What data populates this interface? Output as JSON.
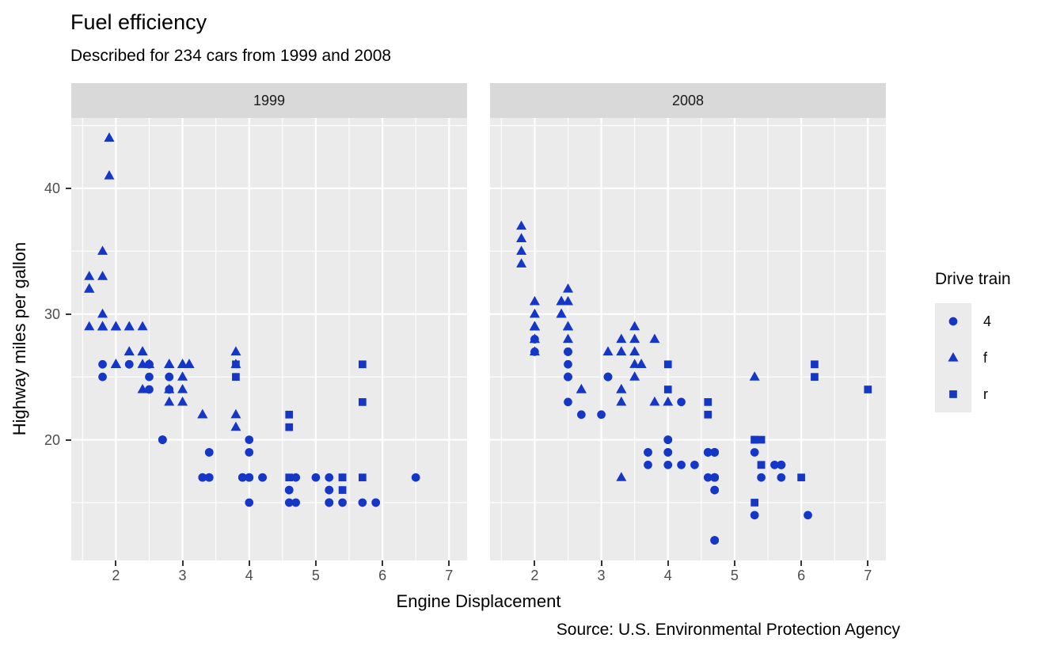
{
  "title": "Fuel efficiency",
  "subtitle": "Described for 234 cars from 1999 and 2008",
  "caption": "Source: U.S. Environmental Protection Agency",
  "axes": {
    "x_title": "Engine Displacement",
    "y_title": "Highway miles per gallon"
  },
  "legend": {
    "title": "Drive train",
    "entries": [
      {
        "label": "4",
        "shape": "circle"
      },
      {
        "label": "f",
        "shape": "triangle"
      },
      {
        "label": "r",
        "shape": "square"
      }
    ]
  },
  "colors": {
    "point": "#1437C8",
    "panel_bg": "#EBEBEB",
    "strip_bg": "#D9D9D9",
    "grid": "#FFFFFF",
    "tick_text": "#4D4D4D",
    "tick_mark": "#333333",
    "strip_text": "#1A1A1A",
    "text": "#000000"
  },
  "chart_data": {
    "type": "scatter",
    "title": "Fuel efficiency",
    "subtitle": "Described for 234 cars from 1999 and 2008",
    "xlabel": "Engine Displacement",
    "ylabel": "Highway miles per gallon",
    "legend_title": "Drive train",
    "legend_position": "right",
    "grid": true,
    "shape_by_drive_train": {
      "4": "circle",
      "f": "triangle",
      "r": "square"
    },
    "x_domain": [
      1.33,
      7.27
    ],
    "y_domain": [
      10.4,
      45.6
    ],
    "x_ticks": [
      2,
      3,
      4,
      5,
      6,
      7
    ],
    "x_minor_ticks": [
      1.5,
      2.5,
      3.5,
      4.5,
      5.5,
      6.5
    ],
    "y_ticks": [
      20,
      30,
      40
    ],
    "y_minor_ticks": [
      15,
      25,
      35,
      45
    ],
    "facets": [
      {
        "label": "1999",
        "points": [
          [
            5.7,
            17,
            "r"
          ],
          [
            5.7,
            26,
            "r"
          ],
          [
            5.7,
            23,
            "r"
          ],
          [
            4.6,
            17,
            "r"
          ],
          [
            5.4,
            17,
            "r"
          ],
          [
            3.8,
            26,
            "r"
          ],
          [
            3.8,
            25,
            "r"
          ],
          [
            4.6,
            21,
            "r"
          ],
          [
            4.6,
            22,
            "r"
          ],
          [
            5.4,
            17,
            "r"
          ],
          [
            5.4,
            16,
            "r"
          ],
          [
            1.8,
            26,
            "4"
          ],
          [
            1.8,
            25,
            "4"
          ],
          [
            2.8,
            25,
            "4"
          ],
          [
            2.8,
            25,
            "4"
          ],
          [
            2.8,
            24,
            "4"
          ],
          [
            5.7,
            15,
            "4"
          ],
          [
            6.5,
            17,
            "4"
          ],
          [
            3.9,
            17,
            "4"
          ],
          [
            3.9,
            17,
            "4"
          ],
          [
            5.2,
            17,
            "4"
          ],
          [
            5.2,
            15,
            "4"
          ],
          [
            3.9,
            17,
            "4"
          ],
          [
            5.2,
            16,
            "4"
          ],
          [
            5.9,
            15,
            "4"
          ],
          [
            5.2,
            15,
            "4"
          ],
          [
            5.2,
            16,
            "4"
          ],
          [
            5.9,
            15,
            "4"
          ],
          [
            5.2,
            15,
            "4"
          ],
          [
            4.0,
            17,
            "4"
          ],
          [
            4.0,
            19,
            "4"
          ],
          [
            4.0,
            17,
            "4"
          ],
          [
            4.2,
            17,
            "4"
          ],
          [
            4.2,
            17,
            "4"
          ],
          [
            4.6,
            16,
            "4"
          ],
          [
            4.6,
            16,
            "4"
          ],
          [
            5.4,
            15,
            "4"
          ],
          [
            4.0,
            20,
            "4"
          ],
          [
            4.7,
            17,
            "4"
          ],
          [
            4.0,
            15,
            "4"
          ],
          [
            4.6,
            15,
            "4"
          ],
          [
            4.0,
            17,
            "4"
          ],
          [
            5.0,
            17,
            "4"
          ],
          [
            3.3,
            17,
            "4"
          ],
          [
            3.3,
            17,
            "4"
          ],
          [
            2.5,
            25,
            "4"
          ],
          [
            2.5,
            24,
            "4"
          ],
          [
            2.2,
            26,
            "4"
          ],
          [
            2.2,
            26,
            "4"
          ],
          [
            2.5,
            26,
            "4"
          ],
          [
            2.5,
            26,
            "4"
          ],
          [
            2.7,
            20,
            "4"
          ],
          [
            2.7,
            20,
            "4"
          ],
          [
            3.4,
            19,
            "4"
          ],
          [
            3.4,
            17,
            "4"
          ],
          [
            4.7,
            15,
            "4"
          ],
          [
            2.7,
            20,
            "4"
          ],
          [
            2.7,
            20,
            "4"
          ],
          [
            3.4,
            17,
            "4"
          ],
          [
            3.4,
            19,
            "4"
          ],
          [
            1.8,
            29,
            "f"
          ],
          [
            1.8,
            29,
            "f"
          ],
          [
            2.8,
            26,
            "f"
          ],
          [
            2.8,
            26,
            "f"
          ],
          [
            2.4,
            27,
            "f"
          ],
          [
            3.1,
            26,
            "f"
          ],
          [
            2.4,
            24,
            "f"
          ],
          [
            3.0,
            24,
            "f"
          ],
          [
            3.3,
            22,
            "f"
          ],
          [
            3.3,
            22,
            "f"
          ],
          [
            3.8,
            22,
            "f"
          ],
          [
            3.8,
            21,
            "f"
          ],
          [
            1.6,
            33,
            "f"
          ],
          [
            1.6,
            32,
            "f"
          ],
          [
            1.6,
            32,
            "f"
          ],
          [
            1.6,
            29,
            "f"
          ],
          [
            1.6,
            32,
            "f"
          ],
          [
            2.4,
            26,
            "f"
          ],
          [
            2.4,
            27,
            "f"
          ],
          [
            2.5,
            26,
            "f"
          ],
          [
            2.5,
            26,
            "f"
          ],
          [
            2.0,
            26,
            "f"
          ],
          [
            2.0,
            29,
            "f"
          ],
          [
            2.4,
            29,
            "f"
          ],
          [
            2.4,
            27,
            "f"
          ],
          [
            3.0,
            26,
            "f"
          ],
          [
            3.0,
            25,
            "f"
          ],
          [
            3.1,
            26,
            "f"
          ],
          [
            3.8,
            26,
            "f"
          ],
          [
            3.8,
            27,
            "f"
          ],
          [
            2.2,
            29,
            "f"
          ],
          [
            2.2,
            27,
            "f"
          ],
          [
            3.0,
            26,
            "f"
          ],
          [
            3.0,
            26,
            "f"
          ],
          [
            2.2,
            27,
            "f"
          ],
          [
            2.2,
            29,
            "f"
          ],
          [
            3.0,
            26,
            "f"
          ],
          [
            1.8,
            30,
            "f"
          ],
          [
            1.8,
            33,
            "f"
          ],
          [
            1.8,
            35,
            "f"
          ],
          [
            3.0,
            23,
            "f"
          ],
          [
            2.0,
            29,
            "f"
          ],
          [
            2.0,
            26,
            "f"
          ],
          [
            2.8,
            24,
            "f"
          ],
          [
            1.9,
            44,
            "f"
          ],
          [
            2.0,
            29,
            "f"
          ],
          [
            2.0,
            26,
            "f"
          ],
          [
            2.8,
            23,
            "f"
          ],
          [
            2.8,
            24,
            "f"
          ],
          [
            1.9,
            44,
            "f"
          ],
          [
            1.9,
            41,
            "f"
          ],
          [
            2.0,
            29,
            "f"
          ],
          [
            2.0,
            26,
            "f"
          ],
          [
            1.8,
            29,
            "f"
          ],
          [
            1.8,
            29,
            "f"
          ],
          [
            2.8,
            26,
            "f"
          ],
          [
            2.8,
            26,
            "f"
          ]
        ]
      },
      {
        "label": "2008",
        "points": [
          [
            5.3,
            20,
            "r"
          ],
          [
            5.3,
            15,
            "r"
          ],
          [
            5.3,
            20,
            "r"
          ],
          [
            6.0,
            17,
            "r"
          ],
          [
            6.2,
            26,
            "r"
          ],
          [
            6.2,
            25,
            "r"
          ],
          [
            7.0,
            24,
            "r"
          ],
          [
            5.4,
            18,
            "r"
          ],
          [
            4.0,
            26,
            "r"
          ],
          [
            4.0,
            24,
            "r"
          ],
          [
            4.6,
            23,
            "r"
          ],
          [
            4.6,
            22,
            "r"
          ],
          [
            5.4,
            20,
            "r"
          ],
          [
            5.4,
            18,
            "r"
          ],
          [
            2.0,
            28,
            "4"
          ],
          [
            2.0,
            27,
            "4"
          ],
          [
            3.1,
            25,
            "4"
          ],
          [
            3.1,
            25,
            "4"
          ],
          [
            3.1,
            25,
            "4"
          ],
          [
            4.2,
            23,
            "4"
          ],
          [
            5.3,
            19,
            "4"
          ],
          [
            5.3,
            14,
            "4"
          ],
          [
            3.7,
            19,
            "4"
          ],
          [
            3.7,
            18,
            "4"
          ],
          [
            4.7,
            19,
            "4"
          ],
          [
            4.7,
            19,
            "4"
          ],
          [
            4.7,
            19,
            "4"
          ],
          [
            4.7,
            17,
            "4"
          ],
          [
            4.7,
            12,
            "4"
          ],
          [
            4.7,
            17,
            "4"
          ],
          [
            5.7,
            18,
            "4"
          ],
          [
            4.7,
            16,
            "4"
          ],
          [
            4.7,
            12,
            "4"
          ],
          [
            4.7,
            17,
            "4"
          ],
          [
            4.7,
            17,
            "4"
          ],
          [
            4.7,
            16,
            "4"
          ],
          [
            5.7,
            17,
            "4"
          ],
          [
            4.0,
            19,
            "4"
          ],
          [
            4.6,
            19,
            "4"
          ],
          [
            4.6,
            19,
            "4"
          ],
          [
            4.6,
            17,
            "4"
          ],
          [
            5.4,
            17,
            "4"
          ],
          [
            3.0,
            22,
            "4"
          ],
          [
            3.7,
            19,
            "4"
          ],
          [
            4.7,
            12,
            "4"
          ],
          [
            4.7,
            19,
            "4"
          ],
          [
            5.7,
            18,
            "4"
          ],
          [
            6.1,
            14,
            "4"
          ],
          [
            4.2,
            18,
            "4"
          ],
          [
            4.4,
            18,
            "4"
          ],
          [
            4.0,
            19,
            "4"
          ],
          [
            4.6,
            19,
            "4"
          ],
          [
            4.0,
            20,
            "4"
          ],
          [
            5.6,
            18,
            "4"
          ],
          [
            2.5,
            27,
            "4"
          ],
          [
            2.5,
            25,
            "4"
          ],
          [
            2.5,
            26,
            "4"
          ],
          [
            2.5,
            23,
            "4"
          ],
          [
            2.5,
            25,
            "4"
          ],
          [
            2.5,
            27,
            "4"
          ],
          [
            2.5,
            25,
            "4"
          ],
          [
            2.5,
            27,
            "4"
          ],
          [
            4.0,
            20,
            "4"
          ],
          [
            4.7,
            17,
            "4"
          ],
          [
            5.7,
            18,
            "4"
          ],
          [
            2.7,
            22,
            "4"
          ],
          [
            4.0,
            18,
            "4"
          ],
          [
            4.0,
            20,
            "4"
          ],
          [
            2.0,
            31,
            "f"
          ],
          [
            2.0,
            30,
            "f"
          ],
          [
            3.1,
            27,
            "f"
          ],
          [
            2.4,
            30,
            "f"
          ],
          [
            3.5,
            29,
            "f"
          ],
          [
            3.6,
            26,
            "f"
          ],
          [
            3.3,
            24,
            "f"
          ],
          [
            3.3,
            24,
            "f"
          ],
          [
            3.3,
            17,
            "f"
          ],
          [
            3.8,
            23,
            "f"
          ],
          [
            4.0,
            23,
            "f"
          ],
          [
            1.8,
            34,
            "f"
          ],
          [
            1.8,
            36,
            "f"
          ],
          [
            1.8,
            36,
            "f"
          ],
          [
            2.0,
            29,
            "f"
          ],
          [
            2.4,
            30,
            "f"
          ],
          [
            2.4,
            31,
            "f"
          ],
          [
            3.3,
            28,
            "f"
          ],
          [
            2.0,
            28,
            "f"
          ],
          [
            2.0,
            27,
            "f"
          ],
          [
            2.7,
            24,
            "f"
          ],
          [
            2.7,
            24,
            "f"
          ],
          [
            2.5,
            31,
            "f"
          ],
          [
            2.5,
            32,
            "f"
          ],
          [
            3.5,
            27,
            "f"
          ],
          [
            3.5,
            26,
            "f"
          ],
          [
            3.5,
            25,
            "f"
          ],
          [
            3.8,
            28,
            "f"
          ],
          [
            5.3,
            25,
            "f"
          ],
          [
            2.4,
            31,
            "f"
          ],
          [
            2.4,
            31,
            "f"
          ],
          [
            3.5,
            28,
            "f"
          ],
          [
            2.4,
            31,
            "f"
          ],
          [
            2.4,
            31,
            "f"
          ],
          [
            3.3,
            27,
            "f"
          ],
          [
            1.8,
            37,
            "f"
          ],
          [
            1.8,
            35,
            "f"
          ],
          [
            3.3,
            23,
            "f"
          ],
          [
            2.0,
            29,
            "f"
          ],
          [
            2.0,
            29,
            "f"
          ],
          [
            2.0,
            29,
            "f"
          ],
          [
            2.0,
            29,
            "f"
          ],
          [
            2.5,
            29,
            "f"
          ],
          [
            2.5,
            29,
            "f"
          ],
          [
            2.5,
            28,
            "f"
          ],
          [
            2.5,
            29,
            "f"
          ],
          [
            2.0,
            28,
            "f"
          ],
          [
            2.0,
            29,
            "f"
          ],
          [
            3.6,
            26,
            "f"
          ]
        ]
      }
    ]
  }
}
